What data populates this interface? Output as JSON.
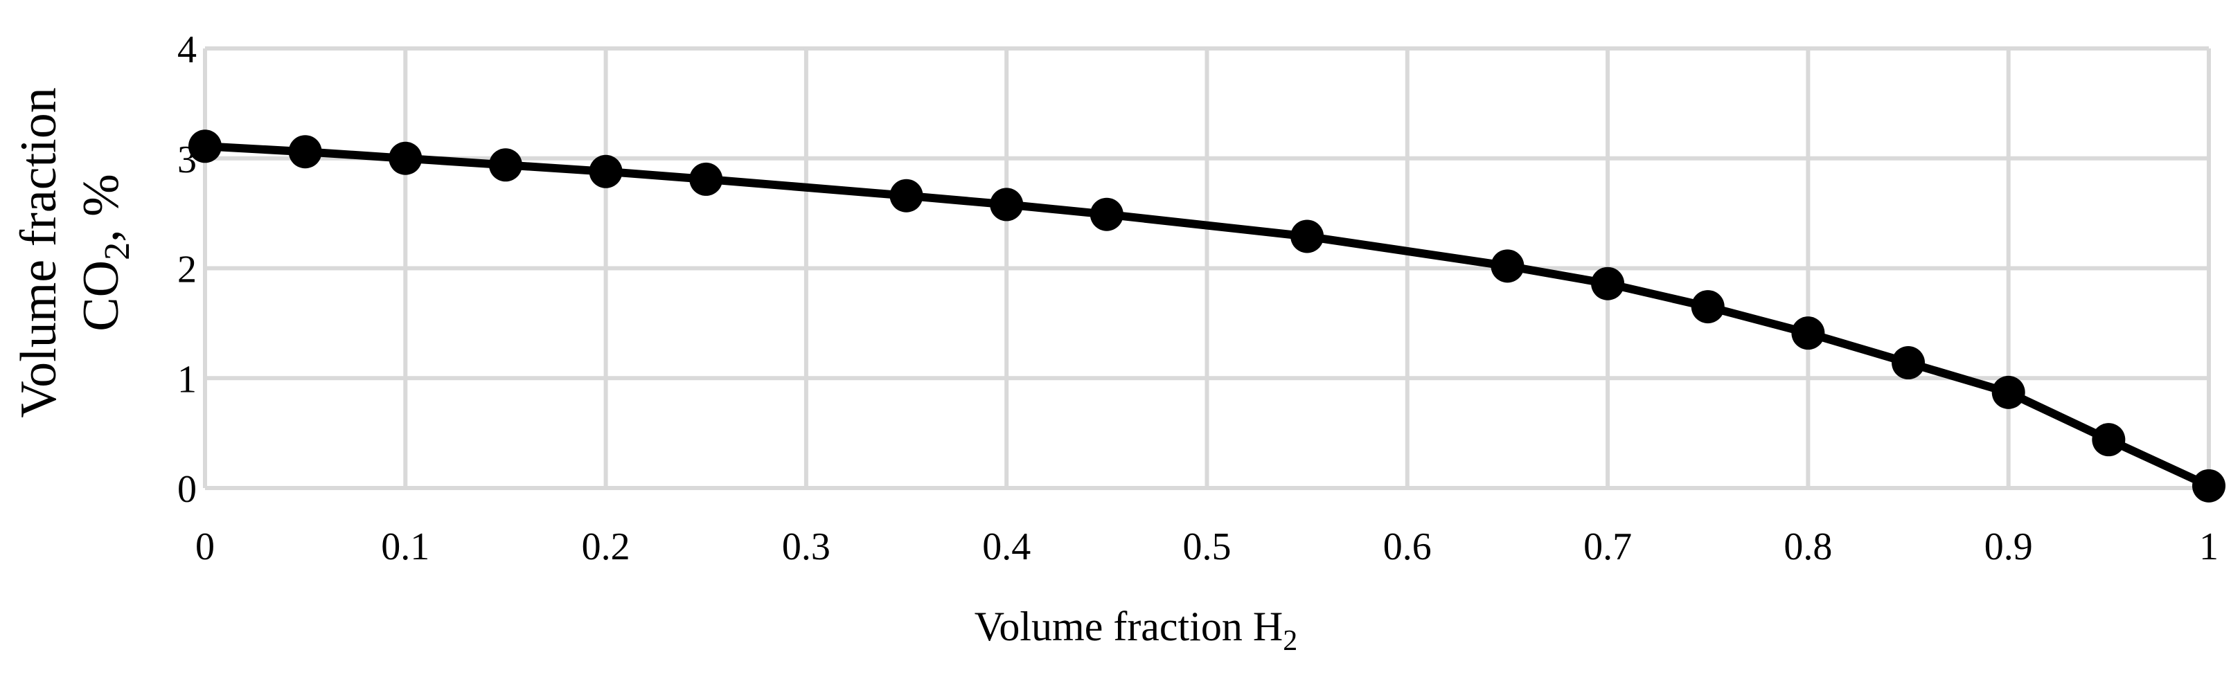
{
  "chart_data": {
    "type": "line",
    "title": "",
    "xlabel": {
      "text": "Volume fraction H",
      "subscript": "2"
    },
    "ylabel": {
      "line1": "Volume fraction",
      "line2_prefix": "CO",
      "line2_subscript": "2",
      "line2_suffix": ", %"
    },
    "xlim": [
      0,
      1
    ],
    "ylim": [
      0,
      4
    ],
    "x_ticks": [
      0,
      0.1,
      0.2,
      0.3,
      0.4,
      0.5,
      0.6,
      0.7,
      0.8,
      0.9,
      1
    ],
    "x_tick_labels": [
      "0",
      "0.1",
      "0.2",
      "0.3",
      "0.4",
      "0.5",
      "0.6",
      "0.7",
      "0.8",
      "0.9",
      "1"
    ],
    "y_ticks": [
      0,
      1,
      2,
      3,
      4
    ],
    "y_tick_labels": [
      "0",
      "1",
      "2",
      "3",
      "4"
    ],
    "grid": true,
    "legend": "none",
    "series": [
      {
        "color": "#000000",
        "marker": "circle",
        "x": [
          0,
          0.05,
          0.1,
          0.15,
          0.2,
          0.25,
          0.35,
          0.4,
          0.45,
          0.55,
          0.65,
          0.7,
          0.75,
          0.8,
          0.85,
          0.9,
          0.95,
          1
        ],
        "y": [
          3.11,
          3.06,
          3.0,
          2.94,
          2.88,
          2.81,
          2.66,
          2.58,
          2.49,
          2.29,
          2.02,
          1.86,
          1.65,
          1.41,
          1.14,
          0.87,
          0.44,
          0.02
        ]
      }
    ]
  }
}
